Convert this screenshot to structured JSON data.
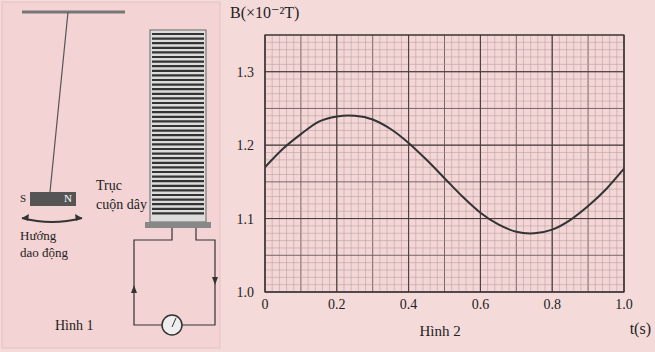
{
  "figure1": {
    "caption": "Hình 1",
    "pole_s": "S",
    "pole_n": "N",
    "coil_label": [
      "Trục",
      "cuộn dây"
    ],
    "motion_label": [
      "Hướng",
      "dao động"
    ]
  },
  "chart_data": {
    "type": "line",
    "caption": "Hình 2",
    "y_label": "B(×10⁻²T)",
    "x_label": "t(s)",
    "x": [
      0,
      0.05,
      0.1,
      0.15,
      0.2,
      0.25,
      0.3,
      0.35,
      0.4,
      0.45,
      0.5,
      0.55,
      0.6,
      0.65,
      0.7,
      0.75,
      0.8,
      0.85,
      0.9,
      0.95,
      1.0
    ],
    "series": [
      {
        "name": "B",
        "color": "#333333",
        "values": [
          1.17,
          1.195,
          1.215,
          1.232,
          1.239,
          1.24,
          1.235,
          1.222,
          1.203,
          1.18,
          1.155,
          1.13,
          1.108,
          1.092,
          1.082,
          1.08,
          1.085,
          1.098,
          1.117,
          1.14,
          1.168
        ]
      }
    ],
    "xlim": [
      0,
      1.0
    ],
    "xticks": [
      0,
      0.2,
      0.4,
      0.6,
      0.8,
      {
        "value": 1.0,
        "label": "1.0"
      }
    ],
    "ylim": [
      1.0,
      1.35
    ],
    "yticks": [
      {
        "value": 1.0,
        "label": "1.0"
      },
      1.1,
      1.2,
      1.3
    ],
    "grid": true
  }
}
